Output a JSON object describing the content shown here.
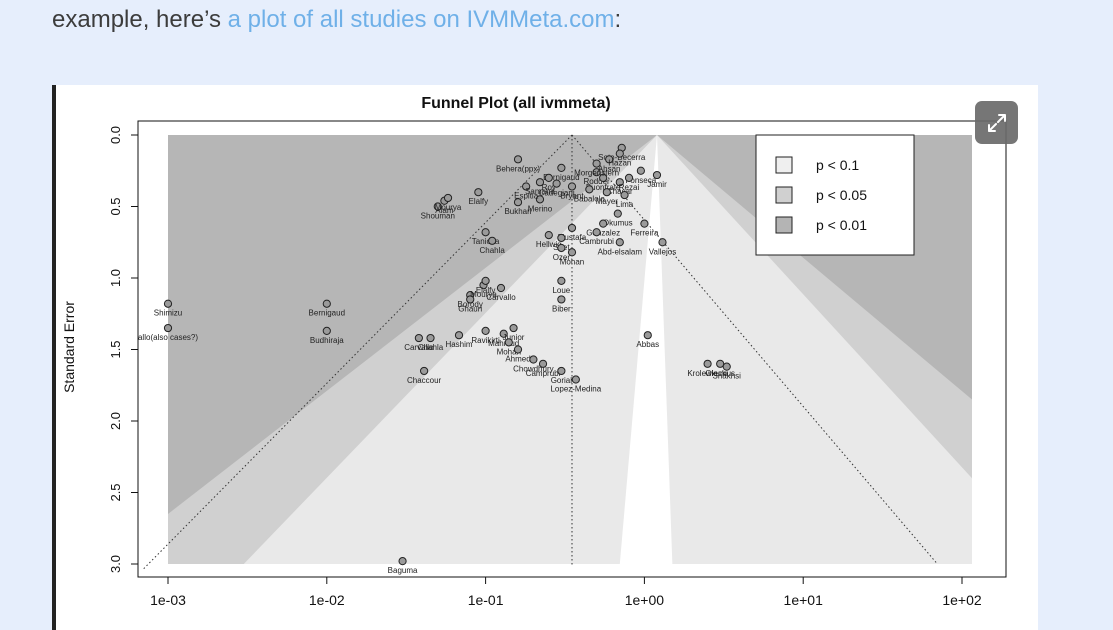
{
  "intro": {
    "prefix": "example, here’s ",
    "link_text": "a plot of all studies on IVMMeta.com",
    "suffix": ":"
  },
  "expand_button": {
    "icon": "expand-icon"
  },
  "chart_data": {
    "type": "scatter",
    "title": "Funnel Plot (all ivmmeta)",
    "xlabel": "",
    "ylabel": "Standard Error",
    "x_scale": "log",
    "xlim": [
      0.001,
      100
    ],
    "ylim": [
      0,
      3
    ],
    "y_inverted": true,
    "x_ticks": [
      "1e-03",
      "1e-02",
      "1e-01",
      "1e+00",
      "1e+01",
      "1e+02"
    ],
    "y_ticks": [
      "0.0",
      "0.5",
      "1.0",
      "1.5",
      "2.0",
      "2.5",
      "3.0"
    ],
    "center": 0.35,
    "legend": {
      "placement": "top-right",
      "entries": [
        {
          "label": "p < 0.1",
          "color": "#efefef"
        },
        {
          "label": "p < 0.05",
          "color": "#d0d0d0"
        },
        {
          "label": "p < 0.01",
          "color": "#b4b4b4"
        }
      ]
    },
    "colors": {
      "outer": "#b6b6b6",
      "mid": "#d0d0d0",
      "inner": "#e9e9e9",
      "core": "#ffffff",
      "point": "#9a9a9a"
    },
    "points": [
      {
        "label": "Shimizu",
        "x": 0.001,
        "y": 1.18
      },
      {
        "label": "allo(also cases?)",
        "x": 0.001,
        "y": 1.35
      },
      {
        "label": "Bernigaud",
        "x": 0.01,
        "y": 1.18
      },
      {
        "label": "Budhiraja",
        "x": 0.01,
        "y": 1.37
      },
      {
        "label": "Baguma",
        "x": 0.03,
        "y": 2.98
      },
      {
        "label": "Chaccour",
        "x": 0.041,
        "y": 1.65
      },
      {
        "label": "Carvallo",
        "x": 0.038,
        "y": 1.42
      },
      {
        "label": "Chahla",
        "x": 0.045,
        "y": 1.42
      },
      {
        "label": "Hashim",
        "x": 0.068,
        "y": 1.4
      },
      {
        "label": "Borody",
        "x": 0.08,
        "y": 1.12
      },
      {
        "label": "Ghauri",
        "x": 0.08,
        "y": 1.15
      },
      {
        "label": "Mourya",
        "x": 0.097,
        "y": 1.05
      },
      {
        "label": "Elalfy",
        "x": 0.1,
        "y": 1.02
      },
      {
        "label": "Carvallo",
        "x": 0.125,
        "y": 1.07
      },
      {
        "label": "Ravikirti",
        "x": 0.1,
        "y": 1.37
      },
      {
        "label": "Mahmud",
        "x": 0.13,
        "y": 1.39
      },
      {
        "label": "Junior",
        "x": 0.15,
        "y": 1.35
      },
      {
        "label": "Mohan",
        "x": 0.14,
        "y": 1.45
      },
      {
        "label": "Ahmed",
        "x": 0.16,
        "y": 1.5
      },
      {
        "label": "Chowdhury",
        "x": 0.2,
        "y": 1.57
      },
      {
        "label": "Camprubi",
        "x": 0.23,
        "y": 1.6
      },
      {
        "label": "Gorial",
        "x": 0.3,
        "y": 1.65
      },
      {
        "label": "Lopez-Medina",
        "x": 0.37,
        "y": 1.71
      },
      {
        "label": "Loue",
        "x": 0.3,
        "y": 1.02
      },
      {
        "label": "Biber",
        "x": 0.3,
        "y": 1.15
      },
      {
        "label": "Abbas",
        "x": 1.05,
        "y": 1.4
      },
      {
        "label": "Krolewiecki",
        "x": 2.5,
        "y": 1.6
      },
      {
        "label": "Okumus",
        "x": 3.0,
        "y": 1.6
      },
      {
        "label": "Shakhsi",
        "x": 3.3,
        "y": 1.62
      },
      {
        "label": "Behera(ppx)",
        "x": 0.16,
        "y": 0.17
      },
      {
        "label": "Soto-Becerra",
        "x": 0.72,
        "y": 0.09
      },
      {
        "label": "Fonseca",
        "x": 0.95,
        "y": 0.25
      },
      {
        "label": "Jamir",
        "x": 1.2,
        "y": 0.28
      },
      {
        "label": "Chacar",
        "x": 0.7,
        "y": 0.33
      },
      {
        "label": "Bukhari",
        "x": 0.16,
        "y": 0.47
      },
      {
        "label": "Merino",
        "x": 0.22,
        "y": 0.45
      },
      {
        "label": "Okumus",
        "x": 0.68,
        "y": 0.55
      },
      {
        "label": "Gonzalez",
        "x": 0.55,
        "y": 0.62
      },
      {
        "label": "Ferreira",
        "x": 1.0,
        "y": 0.62
      },
      {
        "label": "Mustafa",
        "x": 0.35,
        "y": 0.65
      },
      {
        "label": "Cambrubi",
        "x": 0.5,
        "y": 0.68
      },
      {
        "label": "Hellwig",
        "x": 0.25,
        "y": 0.7
      },
      {
        "label": "Seet",
        "x": 0.3,
        "y": 0.72
      },
      {
        "label": "Tanioka",
        "x": 0.1,
        "y": 0.68
      },
      {
        "label": "Chahla",
        "x": 0.11,
        "y": 0.74
      },
      {
        "label": "Ozer",
        "x": 0.3,
        "y": 0.79
      },
      {
        "label": "Mohan",
        "x": 0.35,
        "y": 0.82
      },
      {
        "label": "Abd-elsalam",
        "x": 0.7,
        "y": 0.75
      },
      {
        "label": "Vallejos",
        "x": 1.3,
        "y": 0.75
      },
      {
        "label": "Alam",
        "x": 0.055,
        "y": 0.46
      },
      {
        "label": "Shouman",
        "x": 0.05,
        "y": 0.5
      },
      {
        "label": "Elalfy",
        "x": 0.09,
        "y": 0.4
      },
      {
        "label": "Mourya",
        "x": 0.058,
        "y": 0.44
      },
      {
        "label": "Espitia",
        "x": 0.18,
        "y": 0.36
      },
      {
        "label": "Bernigaud",
        "x": 0.3,
        "y": 0.23
      },
      {
        "label": "Rodder",
        "x": 0.5,
        "y": 0.26
      },
      {
        "label": "Buonfrate",
        "x": 0.55,
        "y": 0.3
      },
      {
        "label": "Rezai",
        "x": 0.8,
        "y": 0.3
      },
      {
        "label": "Morgenstern",
        "x": 0.5,
        "y": 0.2
      },
      {
        "label": "Ahsan",
        "x": 0.6,
        "y": 0.17
      },
      {
        "label": "Hazan",
        "x": 0.7,
        "y": 0.13
      },
      {
        "label": "Bryant",
        "x": 0.35,
        "y": 0.36
      },
      {
        "label": "Babalola",
        "x": 0.45,
        "y": 0.38
      },
      {
        "label": "Mayer",
        "x": 0.58,
        "y": 0.4
      },
      {
        "label": "Lima",
        "x": 0.75,
        "y": 0.42
      },
      {
        "label": "Roy",
        "x": 0.25,
        "y": 0.3
      },
      {
        "label": "Samaha",
        "x": 0.22,
        "y": 0.33
      },
      {
        "label": "Cadegiani",
        "x": 0.28,
        "y": 0.34
      }
    ],
    "labeled_points": [
      "Shimizu",
      "allo(also cases?)",
      "Bernigaud",
      "Budhiraja",
      "Baguma",
      "Chaccour",
      "Carvallo",
      "Chahla",
      "Hashim",
      "Borody",
      "Ghauri",
      "Mourya",
      "Elalfy",
      "Carvallo",
      "Ravikirti",
      "Mahmud",
      "Junior",
      "Mohan",
      "Ahmed",
      "Chowdhury",
      "Camprubi",
      "Gorial",
      "Lopez-Medina",
      "Loue",
      "Biber",
      "Abbas",
      "Krolewiecki",
      "Okumus",
      "Shakhsi",
      "Behera(ppx)",
      "Soto-Becerra",
      "Fonseca",
      "Jamir",
      "Chacar",
      "Bukhari",
      "Merino",
      "Okumus",
      "Gonzalez",
      "Ferreira",
      "Mustafa",
      "Cambrubi",
      "Hellwig",
      "Tanioka",
      "Chahla",
      "Ozer",
      "Mohan",
      "Abd-elsalam",
      "Vallejos",
      "Alam",
      "Shouman",
      "Elalfy",
      "Mourya",
      "Espitia",
      "Rodder"
    ]
  }
}
